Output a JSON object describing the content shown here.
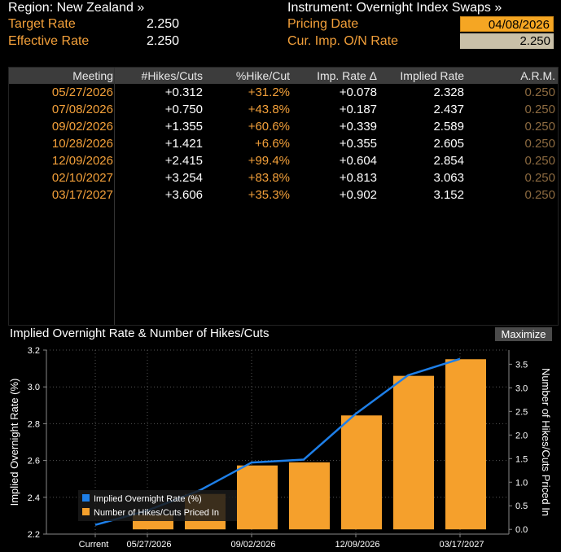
{
  "header": {
    "region": "Region: New Zealand »",
    "target_label": "Target Rate",
    "target_value": "2.250",
    "effective_label": "Effective Rate",
    "effective_value": "2.250",
    "instrument": "Instrument: Overnight Index Swaps »",
    "pricing_label": "Pricing Date",
    "pricing_value": "04/08/2026",
    "imp_label": "Cur. Imp. O/N Rate",
    "imp_value": "2.250"
  },
  "table": {
    "headers": [
      "Meeting",
      "#Hikes/Cuts",
      "%Hike/Cut",
      "Imp. Rate Δ",
      "Implied Rate",
      "A.R.M."
    ],
    "rows": [
      [
        "05/27/2026",
        "+0.312",
        "+31.2%",
        "+0.078",
        "2.328",
        "0.250"
      ],
      [
        "07/08/2026",
        "+0.750",
        "+43.8%",
        "+0.187",
        "2.437",
        "0.250"
      ],
      [
        "09/02/2026",
        "+1.355",
        "+60.6%",
        "+0.339",
        "2.589",
        "0.250"
      ],
      [
        "10/28/2026",
        "+1.421",
        "+6.6%",
        "+0.355",
        "2.605",
        "0.250"
      ],
      [
        "12/09/2026",
        "+2.415",
        "+99.4%",
        "+0.604",
        "2.854",
        "0.250"
      ],
      [
        "02/10/2027",
        "+3.254",
        "+83.8%",
        "+0.813",
        "3.063",
        "0.250"
      ],
      [
        "03/17/2027",
        "+3.606",
        "+35.3%",
        "+0.902",
        "3.152",
        "0.250"
      ]
    ]
  },
  "chart_title": "Implied Overnight Rate & Number of Hikes/Cuts",
  "maximize_label": "Maximize",
  "colors": {
    "bar": "#f5a02c",
    "line": "#1e7fe8",
    "accent_orange": "#f3a03a"
  },
  "chart_data": {
    "type": "bar",
    "categories": [
      "Current",
      "05/27/2026",
      "07/08/2026",
      "09/02/2026",
      "10/28/2026",
      "12/09/2026",
      "02/10/2027",
      "03/17/2027"
    ],
    "x_tick_labels": [
      "Current",
      "05/27/2026",
      "09/02/2026",
      "12/09/2026",
      "03/17/2027"
    ],
    "series": [
      {
        "name": "Implied Overnight Rate (%)",
        "type": "line",
        "axis": "left",
        "values": [
          2.25,
          2.328,
          2.437,
          2.589,
          2.605,
          2.854,
          3.063,
          3.152
        ]
      },
      {
        "name": "Number of Hikes/Cuts Priced In",
        "type": "bar",
        "axis": "right",
        "values": [
          0,
          0.312,
          0.75,
          1.355,
          1.421,
          2.415,
          3.254,
          3.606
        ]
      }
    ],
    "ylabel": "Implied Overnight Rate (%)",
    "y2label": "Number of Hikes/Cuts Priced In",
    "ylim": [
      2.2,
      3.2
    ],
    "y2lim": [
      -0.1,
      3.8
    ],
    "yticks": [
      "2.2",
      "2.4",
      "2.6",
      "2.8",
      "3.0",
      "3.2"
    ],
    "y2ticks": [
      "0.0",
      "0.5",
      "1.0",
      "1.5",
      "2.0",
      "2.5",
      "3.0",
      "3.5"
    ],
    "grid": true,
    "legend": "bottom-left"
  }
}
